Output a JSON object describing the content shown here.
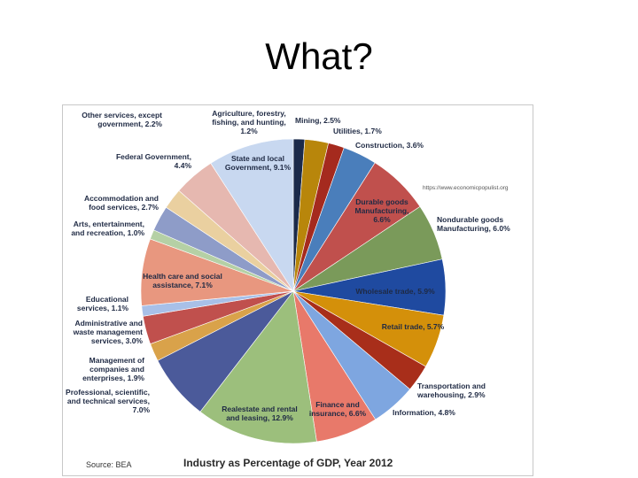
{
  "slide": {
    "title": "What?"
  },
  "figure": {
    "url": "https://www.economicpopulist.org",
    "source": "Source: BEA"
  },
  "chart_data": {
    "type": "pie",
    "title": "Industry as Percentage of GDP, Year 2012",
    "unit": "%",
    "slices": [
      {
        "name": "Agriculture, forestry, fishing, and hunting",
        "value": 1.2,
        "label": [
          "Agriculture, forestry,",
          "fishing, and hunting,",
          "1.2%"
        ],
        "color": "#1b2a4a"
      },
      {
        "name": "Mining",
        "value": 2.5,
        "label": [
          "Mining, 2.5%"
        ],
        "color": "#b8860b"
      },
      {
        "name": "Utilities",
        "value": 1.7,
        "label": [
          "Utilities, 1.7%"
        ],
        "color": "#a52a1e"
      },
      {
        "name": "Construction",
        "value": 3.6,
        "label": [
          "Construction, 3.6%"
        ],
        "color": "#4a7ebb"
      },
      {
        "name": "Durable goods Manufacturing",
        "value": 6.6,
        "label": [
          "Durable goods",
          "Manufacturing,",
          "6.6%"
        ],
        "color": "#c0504d"
      },
      {
        "name": "Nondurable goods Manufacturing",
        "value": 6.0,
        "label": [
          "Nondurable goods",
          "Manufacturing, 6.0%"
        ],
        "color": "#7a9a5a"
      },
      {
        "name": "Wholesale trade",
        "value": 5.9,
        "label": [
          "Wholesale trade, 5.9%"
        ],
        "color": "#1f4aa0"
      },
      {
        "name": "Retail trade",
        "value": 5.7,
        "label": [
          "Retail trade, 5.7%"
        ],
        "color": "#d4900a"
      },
      {
        "name": "Transportation and warehousing",
        "value": 2.9,
        "label": [
          "Transportation and",
          "warehousing, 2.9%"
        ],
        "color": "#a82e1a"
      },
      {
        "name": "Information",
        "value": 4.8,
        "label": [
          "Information, 4.8%"
        ],
        "color": "#7ea6e0"
      },
      {
        "name": "Finance and insurance",
        "value": 6.6,
        "label": [
          "Finance and",
          "insurance, 6.6%"
        ],
        "color": "#e8796a"
      },
      {
        "name": "Real estate and rental and leasing",
        "value": 12.9,
        "label": [
          "Realestate and rental",
          "and leasing, 12.9%"
        ],
        "color": "#9cbf7c"
      },
      {
        "name": "Professional, scientific, and technical services",
        "value": 7.0,
        "label": [
          "Professional, scientific,",
          "and technical services,",
          "7.0%"
        ],
        "color": "#4b5a9a"
      },
      {
        "name": "Management of companies and enterprises",
        "value": 1.9,
        "label": [
          "Management of",
          "companies and",
          "enterprises, 1.9%"
        ],
        "color": "#d9a24a"
      },
      {
        "name": "Administrative and waste management services",
        "value": 3.0,
        "label": [
          "Administrative and",
          "waste management",
          "services, 3.0%"
        ],
        "color": "#c0504d"
      },
      {
        "name": "Educational services",
        "value": 1.1,
        "label": [
          "Educational",
          "services, 1.1%"
        ],
        "color": "#a8c0e8"
      },
      {
        "name": "Health care and social assistance",
        "value": 7.1,
        "label": [
          "Health care and social",
          "assistance, 7.1%"
        ],
        "color": "#e8977f"
      },
      {
        "name": "Arts, entertainment, and recreation",
        "value": 1.0,
        "label": [
          "Arts, entertainment,",
          "and recreation, 1.0%"
        ],
        "color": "#b5d0a5"
      },
      {
        "name": "Accommodation and food services",
        "value": 2.7,
        "label": [
          "Accommodation and",
          "food services, 2.7%"
        ],
        "color": "#8e9cc8"
      },
      {
        "name": "Other services, except government",
        "value": 2.2,
        "label": [
          "Other services, except",
          "government, 2.2%"
        ],
        "color": "#ead0a0"
      },
      {
        "name": "Federal Government",
        "value": 4.4,
        "label": [
          "Federal Government,",
          "4.4%"
        ],
        "color": "#e6b8b0"
      },
      {
        "name": "State and local Government",
        "value": 9.1,
        "label": [
          "State and local",
          "Government, 9.1%"
        ],
        "color": "#c8d8f0"
      }
    ]
  }
}
